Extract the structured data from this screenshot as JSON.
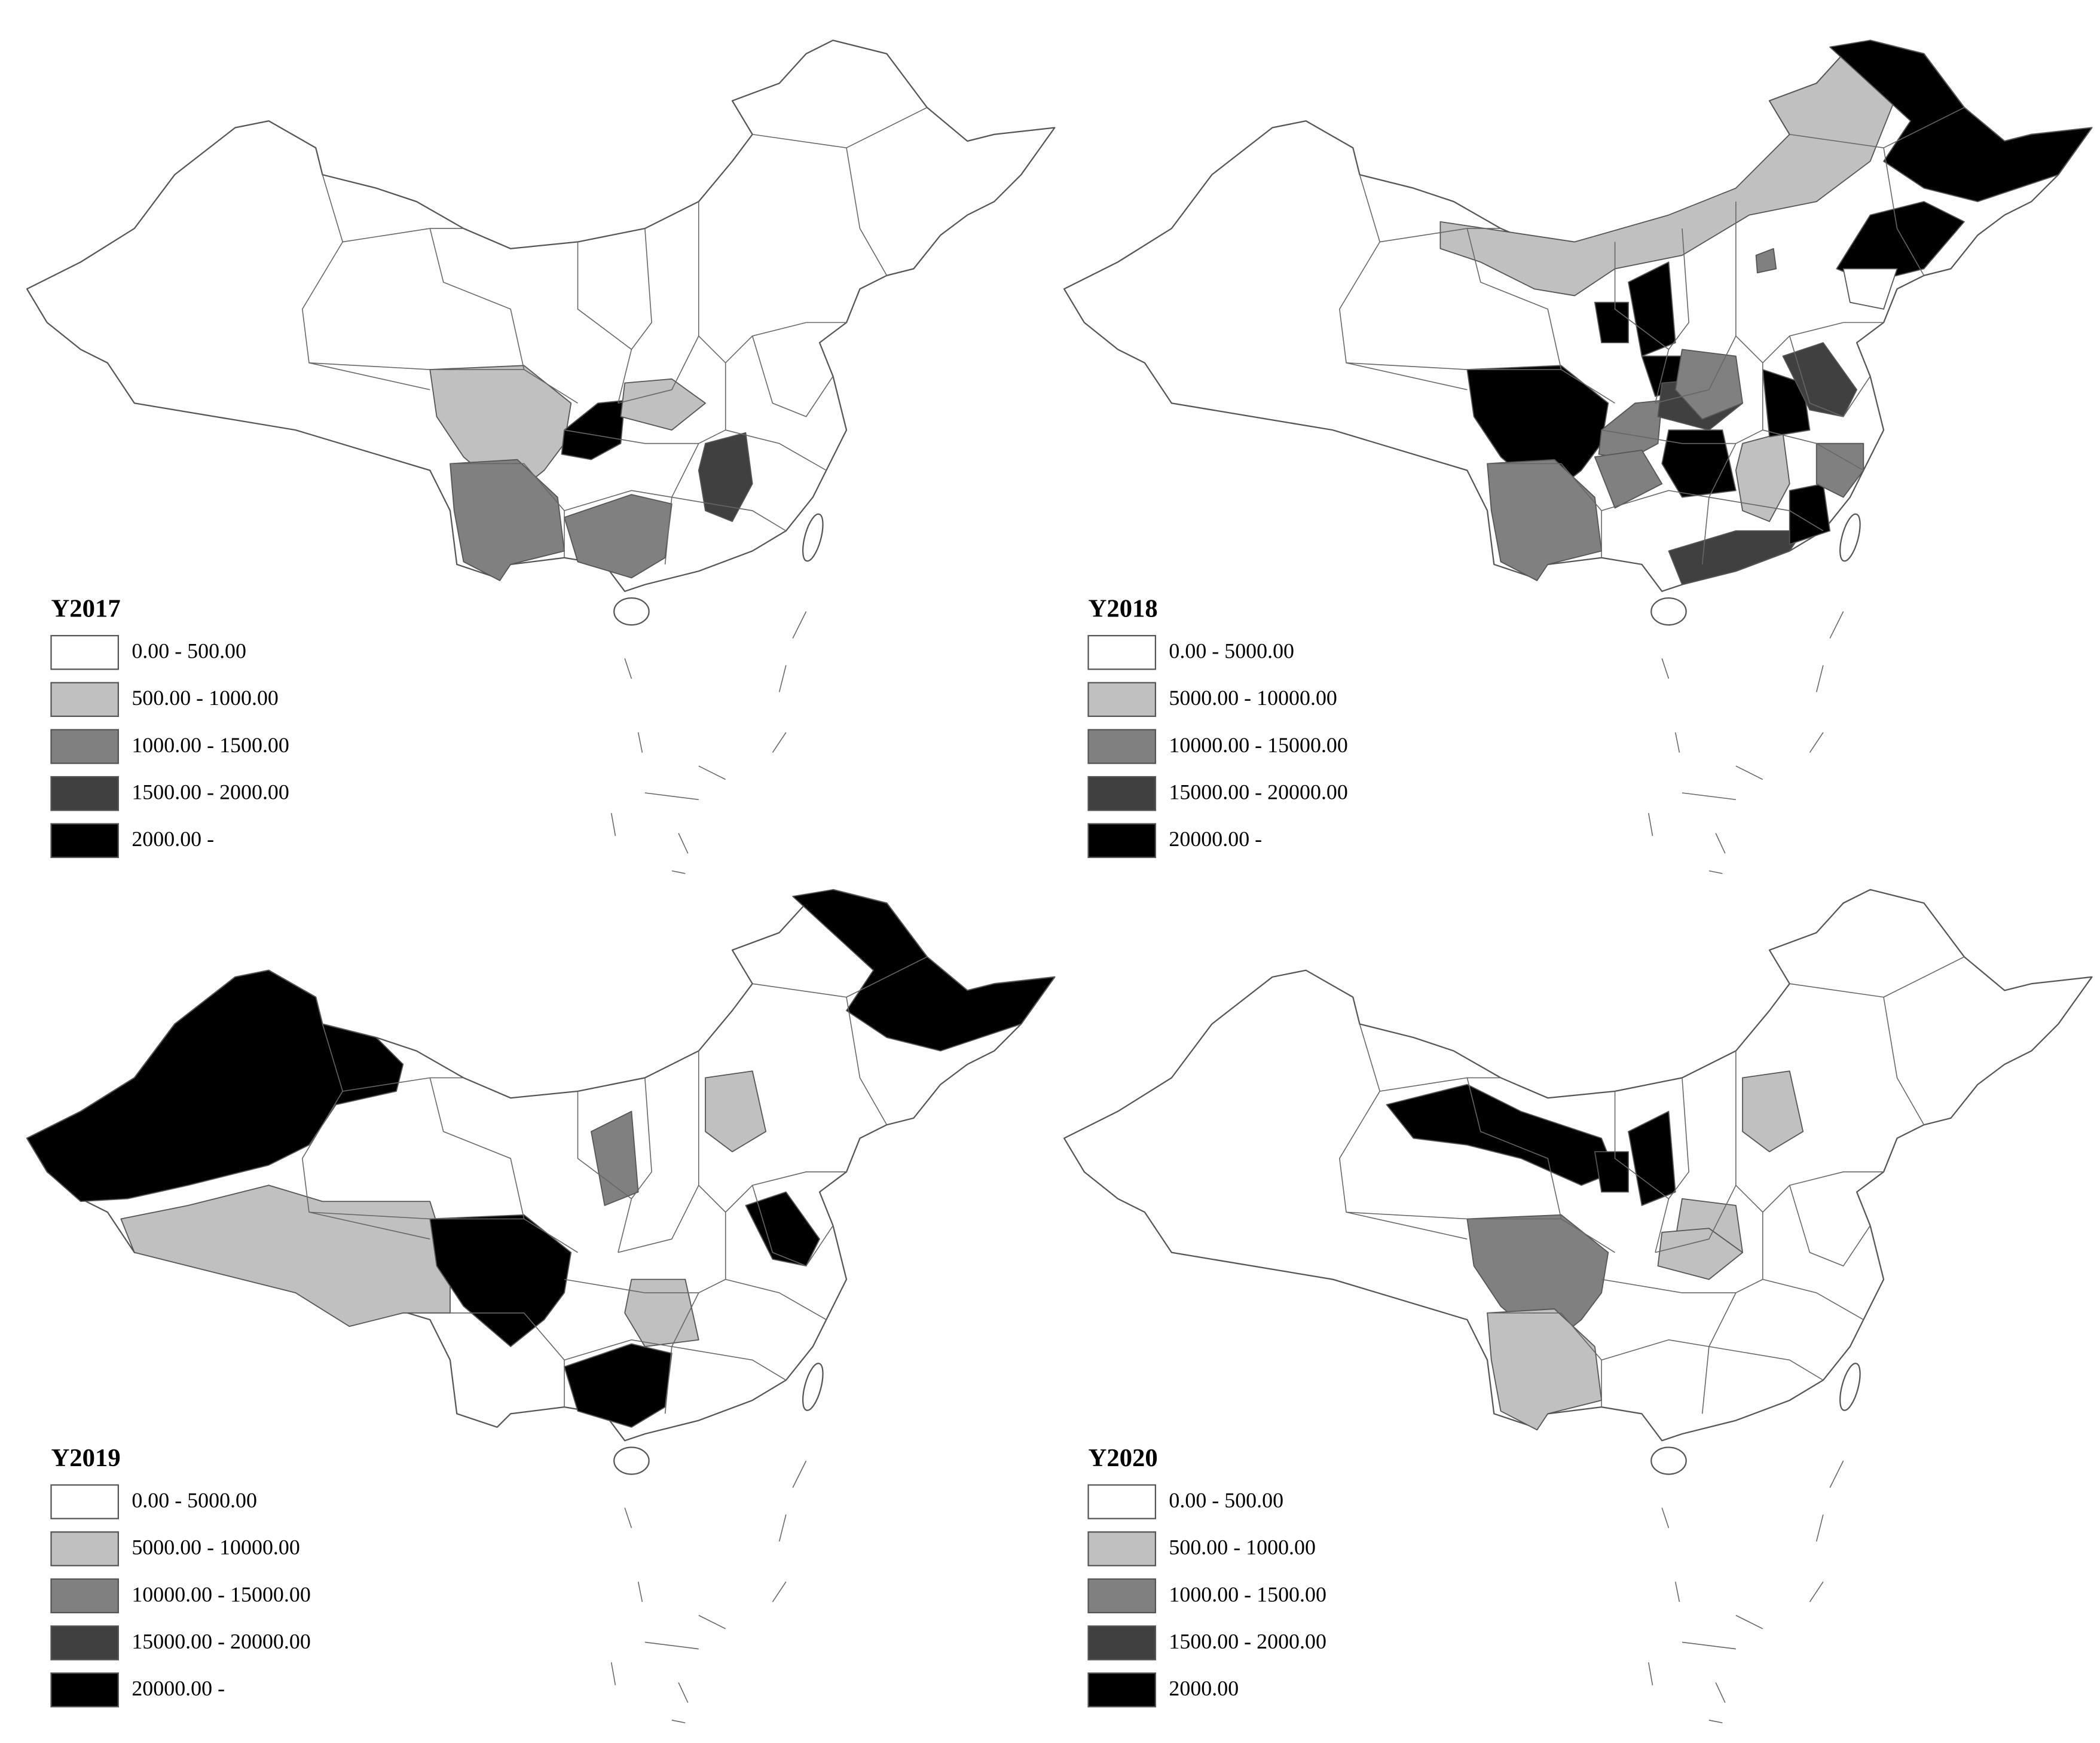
{
  "maps": [
    {
      "title": "Y2017",
      "legend": [
        {
          "label": "0.00 - 500.00",
          "color": "#ffffff"
        },
        {
          "label": "500.00 - 1000.00",
          "color": "#c0c0c0"
        },
        {
          "label": "1000.00 - 1500.00",
          "color": "#808080"
        },
        {
          "label": "1500.00 - 2000.00",
          "color": "#404040"
        },
        {
          "label": "2000.00 -",
          "color": "#000000"
        }
      ]
    },
    {
      "title": "Y2018",
      "legend": [
        {
          "label": "0.00 - 5000.00",
          "color": "#ffffff"
        },
        {
          "label": "5000.00 - 10000.00",
          "color": "#c0c0c0"
        },
        {
          "label": "10000.00 - 15000.00",
          "color": "#808080"
        },
        {
          "label": "15000.00 - 20000.00",
          "color": "#404040"
        },
        {
          "label": "20000.00 -",
          "color": "#000000"
        }
      ]
    },
    {
      "title": "Y2019",
      "legend": [
        {
          "label": "0.00 - 5000.00",
          "color": "#ffffff"
        },
        {
          "label": "5000.00 - 10000.00",
          "color": "#c0c0c0"
        },
        {
          "label": "10000.00 - 15000.00",
          "color": "#808080"
        },
        {
          "label": "15000.00 - 20000.00",
          "color": "#404040"
        },
        {
          "label": "20000.00 -",
          "color": "#000000"
        }
      ]
    },
    {
      "title": "Y2020",
      "legend": [
        {
          "label": "0.00 - 500.00",
          "color": "#ffffff"
        },
        {
          "label": "500.00 - 1000.00",
          "color": "#c0c0c0"
        },
        {
          "label": "1000.00 - 1500.00",
          "color": "#808080"
        },
        {
          "label": "1500.00 - 2000.00",
          "color": "#404040"
        },
        {
          "label": "2000.00",
          "color": "#000000"
        }
      ]
    }
  ]
}
